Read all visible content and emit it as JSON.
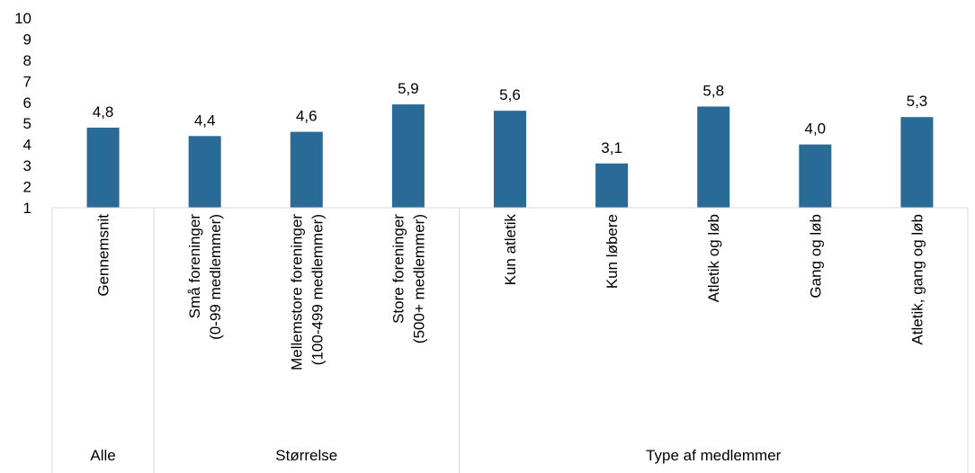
{
  "chart_data": {
    "type": "bar",
    "categories": [
      [
        "Gennemsnit"
      ],
      [
        "Små foreninger",
        "(0-99 medlemmer)"
      ],
      [
        "Mellemstore foreninger",
        "(100-499 medlemmer)"
      ],
      [
        "Store foreninger",
        "(500+ medlemmer)"
      ],
      [
        "Kun atletik"
      ],
      [
        "Kun løbere"
      ],
      [
        "Atletik og løb"
      ],
      [
        "Gang og løb"
      ],
      [
        "Atletik, gang og løb"
      ]
    ],
    "values": [
      4.8,
      4.4,
      4.6,
      5.9,
      5.6,
      3.1,
      5.8,
      4.0,
      5.3
    ],
    "value_labels": [
      "4,8",
      "4,4",
      "4,6",
      "5,9",
      "5,6",
      "3,1",
      "5,8",
      "4,0",
      "5,3"
    ],
    "groups": [
      {
        "label": "Alle",
        "count": 1
      },
      {
        "label": "Størrelse",
        "count": 3
      },
      {
        "label": "Type af medlemmer",
        "count": 5
      }
    ],
    "yticks": [
      "1",
      "2",
      "3",
      "4",
      "5",
      "6",
      "7",
      "8",
      "9",
      "10"
    ],
    "ylim": [
      1,
      10
    ],
    "grid": false,
    "bar_color": "#2A6A96",
    "axis_color": "#D9D9D9",
    "title": "",
    "xlabel": "",
    "ylabel": ""
  }
}
